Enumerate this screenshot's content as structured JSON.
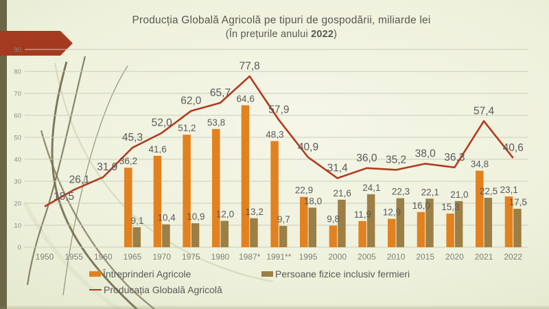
{
  "title": {
    "line1": "Producția Globală Agricolă pe tipuri de gospodării, miliarde lei",
    "line2_prefix": "(În prețurile anului ",
    "line2_year": "2022",
    "line2_suffix": ")"
  },
  "legend": {
    "items": [
      {
        "label": "Întreprinderi Agricole",
        "color": "#E2811E",
        "marker": "square"
      },
      {
        "label": "Persoane fizice inclusiv fermieri",
        "color": "#9C7F45",
        "marker": "square"
      },
      {
        "label": "Producația Globală Agricolă",
        "color": "#B13A1E",
        "marker": "line"
      }
    ]
  },
  "chart_data": {
    "type": "combo bar+line",
    "title": "Producția Globală Agricolă pe tipuri de gospodării, miliarde lei (În prețurile anului 2022)",
    "categories": [
      "1950",
      "1955",
      "1960",
      "1965",
      "1970",
      "1975",
      "1980",
      "1987*",
      "1991**",
      "1995",
      "2000",
      "2005",
      "2010",
      "2015",
      "2020",
      "2021",
      "2022"
    ],
    "series": [
      {
        "name": "Întreprinderi Agricole",
        "type": "bar",
        "color": "#E2811E",
        "values": [
          null,
          null,
          null,
          36.2,
          41.6,
          51.2,
          53.8,
          64.6,
          48.3,
          22.9,
          9.8,
          11.9,
          12.9,
          16.0,
          15.3,
          34.8,
          23.1
        ]
      },
      {
        "name": "Persoane fizice inclusiv fermieri",
        "type": "bar",
        "color": "#9C7F45",
        "values": [
          null,
          null,
          null,
          9.1,
          10.4,
          10.9,
          12.0,
          13.2,
          9.7,
          18.0,
          21.6,
          24.1,
          22.3,
          22.1,
          21.0,
          22.5,
          17.5
        ]
      },
      {
        "name": "Producația Globală Agricolă",
        "type": "line",
        "color": "#B13A1E",
        "values": [
          18.5,
          26.1,
          31.9,
          45.3,
          52.0,
          62.0,
          65.7,
          77.8,
          57.9,
          40.9,
          31.4,
          36.0,
          35.2,
          38.0,
          36.3,
          57.4,
          40.6
        ]
      }
    ],
    "ylim": [
      0,
      90
    ],
    "ytick_step": 10,
    "y_ticks": [
      0,
      10,
      20,
      30,
      40,
      50,
      60,
      70,
      80,
      90
    ],
    "grid": true,
    "legend_position": "bottom",
    "value_label_format": "one decimal, comma as decimal separator"
  },
  "colors": {
    "bar_orange": "#E2811E",
    "bar_brown": "#9C7F45",
    "line_red": "#B13A1E",
    "arrow_red": "#A43A1F",
    "left_strip_olive": "#6C6647",
    "gridline": "#CBCDBC",
    "data_label_text": "#595959",
    "x_axis_text": "#7F7F76",
    "y_axis_text": "#8F8F86"
  }
}
